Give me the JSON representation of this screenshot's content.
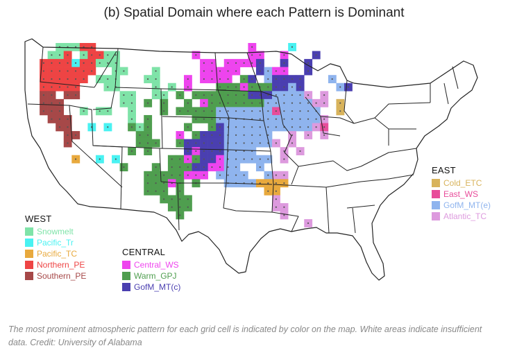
{
  "title": "(b) Spatial Domain where each Pattern is Dominant",
  "regions": [
    {
      "key": "west",
      "heading": "WEST",
      "items": [
        {
          "label": "Snowmelt",
          "color": "#7fe3a8"
        },
        {
          "label": "Pacific_Tr",
          "color": "#49f2f2"
        },
        {
          "label": "Pacific_TC",
          "color": "#e8a93d"
        },
        {
          "label": "Northern_PE",
          "color": "#ee4444"
        },
        {
          "label": "Southern_PE",
          "color": "#a64848"
        }
      ]
    },
    {
      "key": "central",
      "heading": "CENTRAL",
      "items": [
        {
          "label": "Central_WS",
          "color": "#ee44ee"
        },
        {
          "label": "Warm_GPJ",
          "color": "#4f9e4f"
        },
        {
          "label": "GofM_MT(c)",
          "color": "#4a3fb0"
        }
      ]
    },
    {
      "key": "east",
      "heading": "EAST",
      "items": [
        {
          "label": "Cold_ETC",
          "color": "#d8b35c"
        },
        {
          "label": "East_WS",
          "color": "#e84c9a"
        },
        {
          "label": "GofM_MT(e)",
          "color": "#8fb4ee"
        },
        {
          "label": "Atlantic_TC",
          "color": "#dd9ade"
        }
      ]
    }
  ],
  "caption": "The most prominent atmospheric pattern for each grid cell is indicated by color on the map. White areas indicate insufficient data. Credit: University of Alabama"
}
